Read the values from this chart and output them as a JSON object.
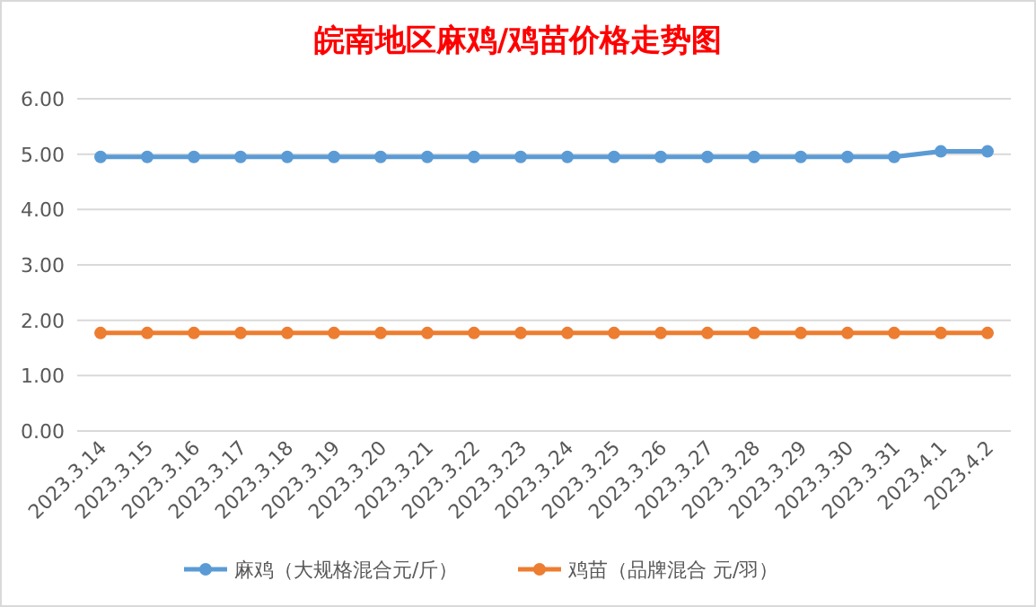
{
  "chart_data": {
    "type": "line",
    "title": "皖南地区麻鸡/鸡苗价格走势图",
    "categories": [
      "2023.3.14",
      "2023.3.15",
      "2023.3.16",
      "2023.3.17",
      "2023.3.18",
      "2023.3.19",
      "2023.3.20",
      "2023.3.21",
      "2023.3.22",
      "2023.3.23",
      "2023.3.24",
      "2023.3.25",
      "2023.3.26",
      "2023.3.27",
      "2023.3.28",
      "2023.3.29",
      "2023.3.30",
      "2023.3.31",
      "2023.4.1",
      "2023.4.2"
    ],
    "series": [
      {
        "name": "麻鸡（大规格混合元/斤）",
        "color": "#5b9bd5",
        "values": [
          4.95,
          4.95,
          4.95,
          4.95,
          4.95,
          4.95,
          4.95,
          4.95,
          4.95,
          4.95,
          4.95,
          4.95,
          4.95,
          4.95,
          4.95,
          4.95,
          4.95,
          4.95,
          5.05,
          5.05
        ]
      },
      {
        "name": "鸡苗（品牌混合 元/羽）",
        "color": "#ed7d31",
        "values": [
          1.77,
          1.77,
          1.77,
          1.77,
          1.77,
          1.77,
          1.77,
          1.77,
          1.77,
          1.77,
          1.77,
          1.77,
          1.77,
          1.77,
          1.77,
          1.77,
          1.77,
          1.77,
          1.77,
          1.77
        ]
      }
    ],
    "ylim": [
      0,
      6
    ],
    "yticks": [
      {
        "value": 0,
        "label": "0.00"
      },
      {
        "value": 1,
        "label": "1.00"
      },
      {
        "value": 2,
        "label": "2.00"
      },
      {
        "value": 3,
        "label": "3.00"
      },
      {
        "value": 4,
        "label": "4.00"
      },
      {
        "value": 5,
        "label": "5.00"
      },
      {
        "value": 6,
        "label": "6.00"
      }
    ],
    "grid": "y",
    "legend": "bottom",
    "marker": "circle",
    "line_style": "solid"
  }
}
